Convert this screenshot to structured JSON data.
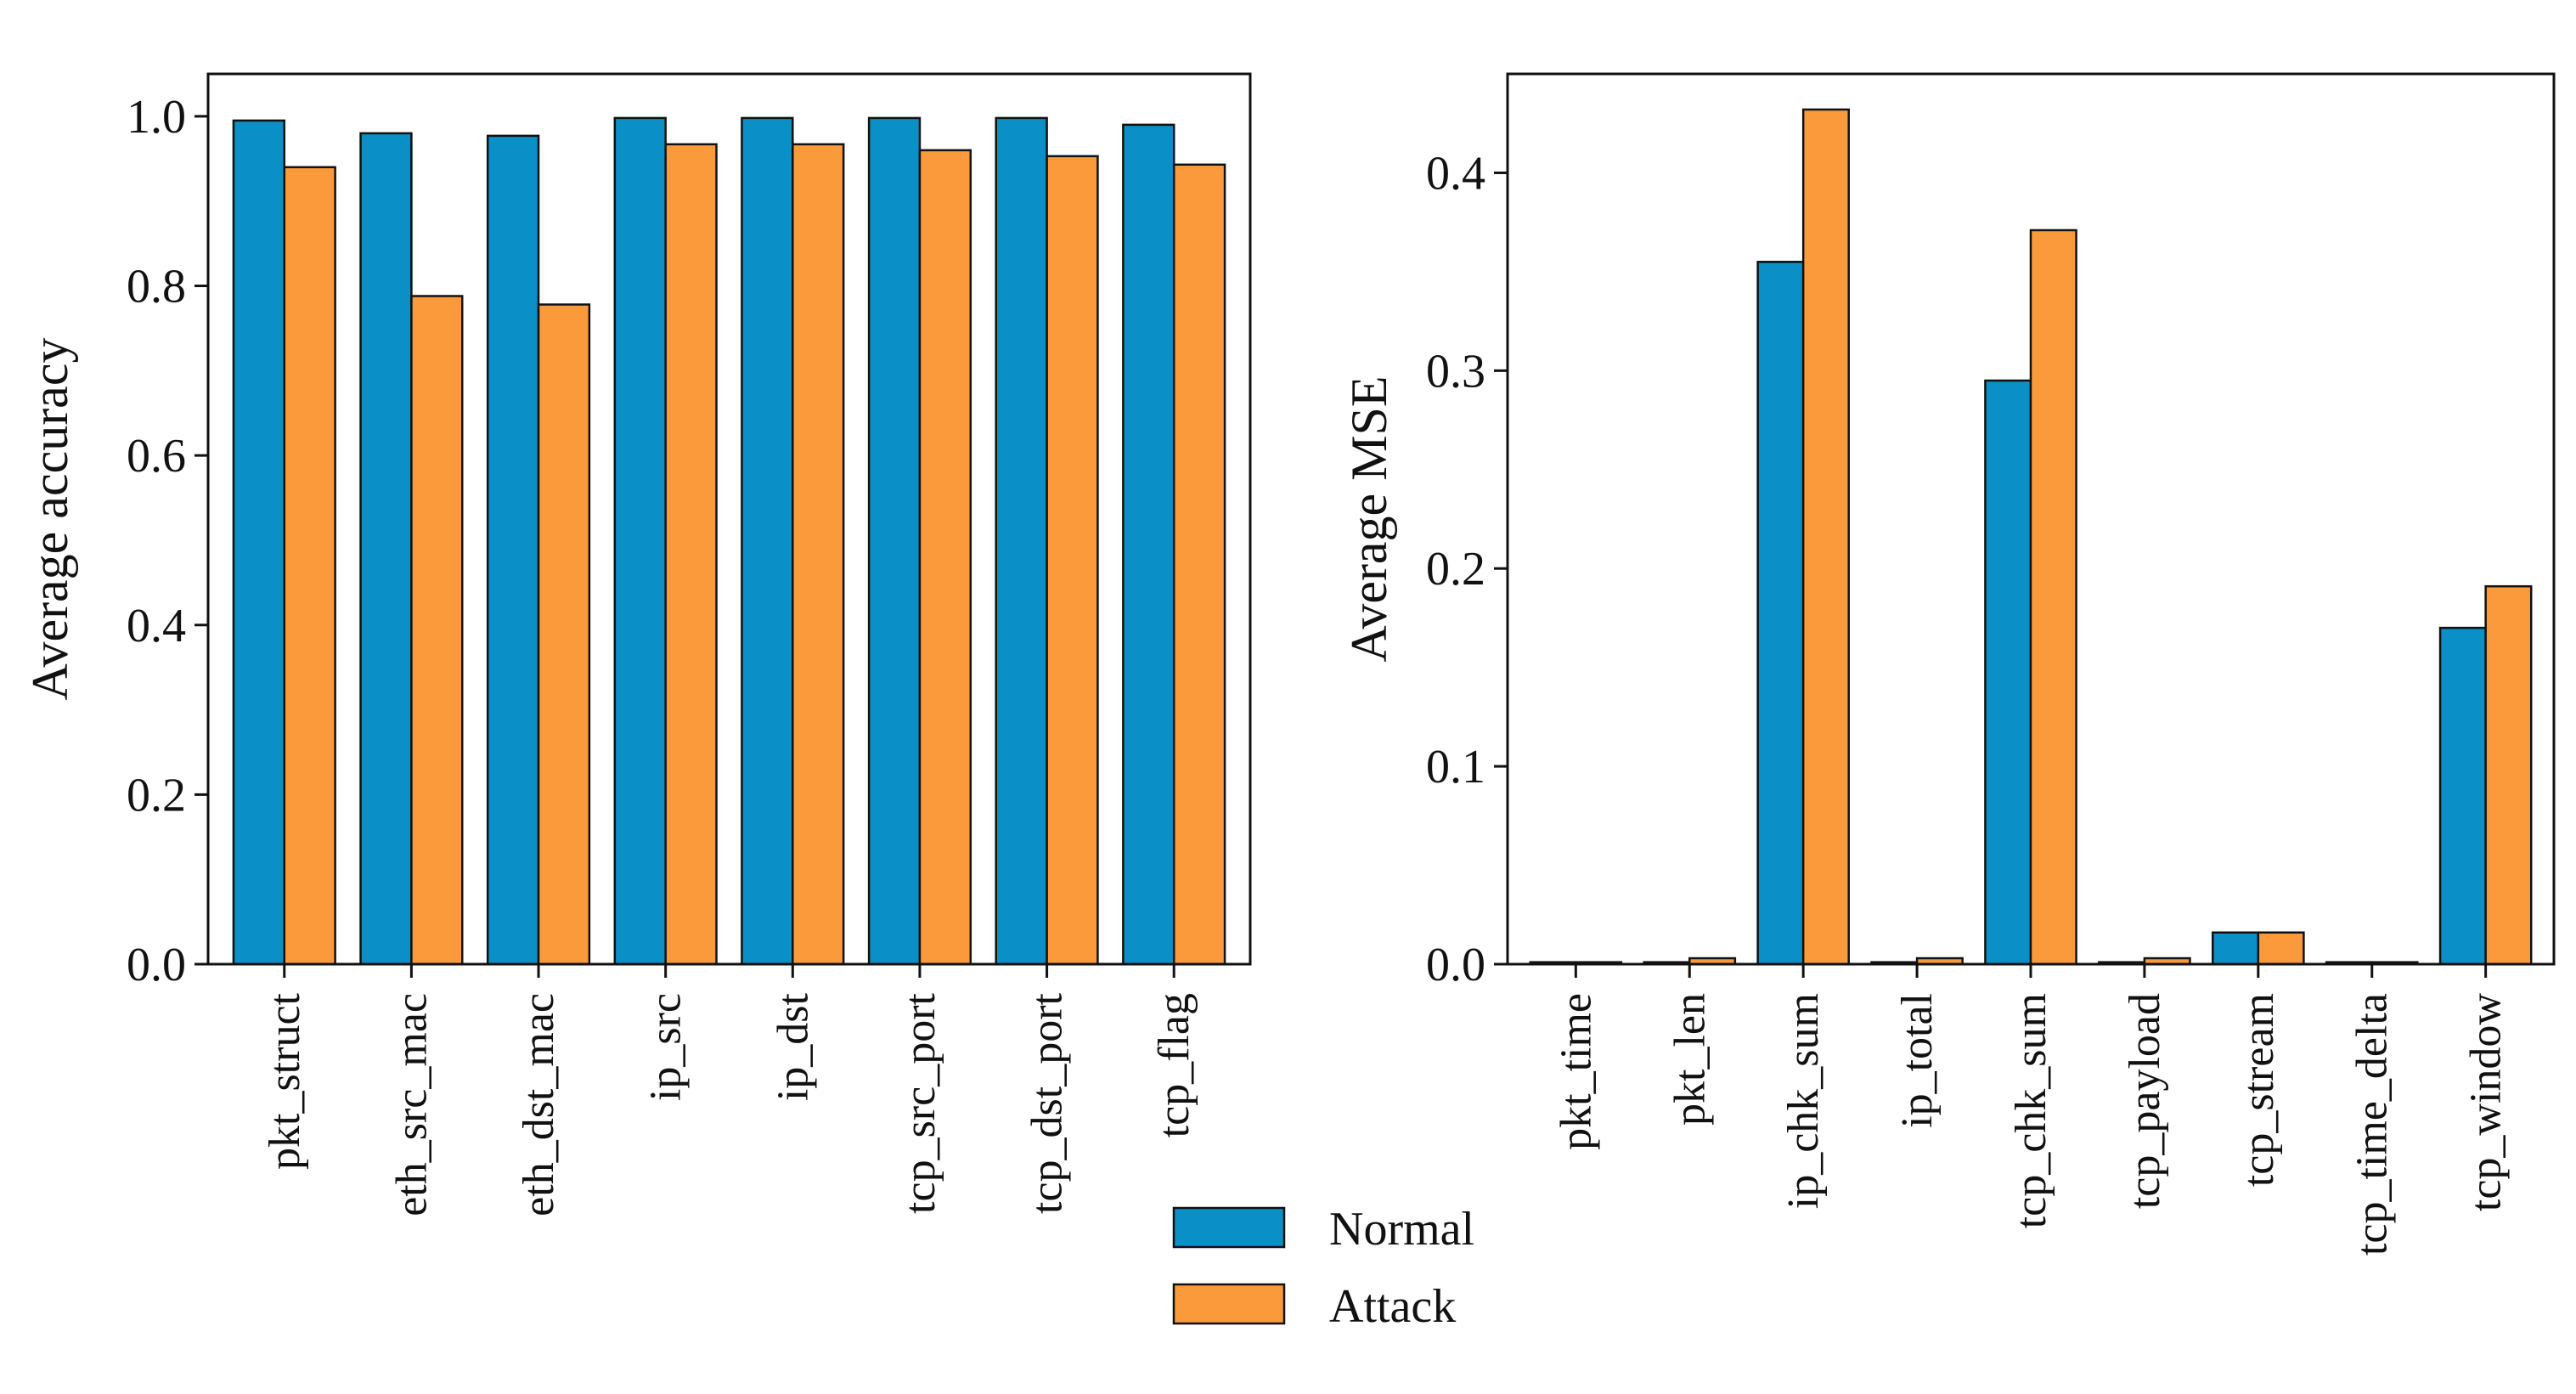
{
  "series_colors": {
    "Normal": "#0a8fc7",
    "Attack": "#fb9a3a"
  },
  "legend": {
    "normal_label": "Normal",
    "attack_label": "Attack"
  },
  "chart_data": [
    {
      "type": "bar",
      "title": "",
      "xlabel": "",
      "ylabel": "Average accuracy",
      "ylim": [
        0,
        1.05
      ],
      "yticks": [
        0.0,
        0.2,
        0.4,
        0.6,
        0.8,
        1.0
      ],
      "ytick_labels": [
        "0.0",
        "0.2",
        "0.4",
        "0.6",
        "0.8",
        "1.0"
      ],
      "categories": [
        "pkt_struct",
        "eth_src_mac",
        "eth_dst_mac",
        "ip_src",
        "ip_dst",
        "tcp_src_port",
        "tcp_dst_port",
        "tcp_flag"
      ],
      "series": [
        {
          "name": "Normal",
          "values": [
            0.995,
            0.98,
            0.977,
            0.998,
            0.998,
            0.998,
            0.998,
            0.99
          ]
        },
        {
          "name": "Attack",
          "values": [
            0.94,
            0.788,
            0.778,
            0.967,
            0.967,
            0.96,
            0.953,
            0.943
          ]
        }
      ]
    },
    {
      "type": "bar",
      "title": "",
      "xlabel": "",
      "ylabel": "Average MSE",
      "ylim": [
        0,
        0.45
      ],
      "yticks": [
        0.0,
        0.1,
        0.2,
        0.3,
        0.4
      ],
      "ytick_labels": [
        "0.0",
        "0.1",
        "0.2",
        "0.3",
        "0.4"
      ],
      "categories": [
        "pkt_time",
        "pkt_len",
        "ip_chk_sum",
        "ip_total",
        "tcp_chk_sum",
        "tcp_payload",
        "tcp_stream",
        "tcp_time_delta",
        "tcp_window"
      ],
      "series": [
        {
          "name": "Normal",
          "values": [
            0.001,
            0.001,
            0.355,
            0.001,
            0.295,
            0.001,
            0.016,
            0.001,
            0.17
          ]
        },
        {
          "name": "Attack",
          "values": [
            0.001,
            0.003,
            0.432,
            0.003,
            0.371,
            0.003,
            0.016,
            0.001,
            0.191
          ]
        }
      ]
    }
  ]
}
